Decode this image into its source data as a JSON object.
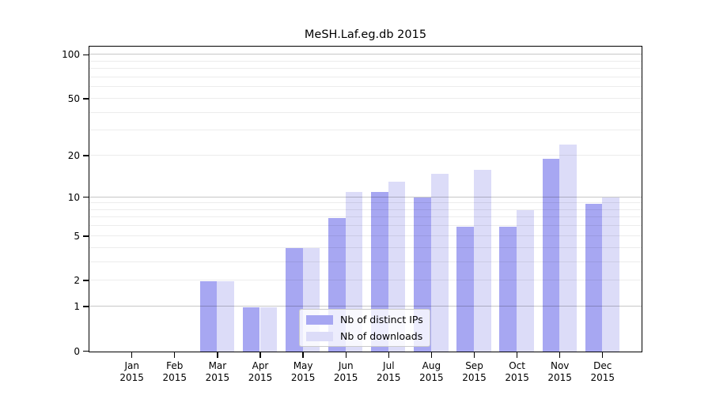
{
  "page": {
    "background": "#ffffff",
    "spine_color": "#000000",
    "text_color": "#000000"
  },
  "chart_data": {
    "type": "bar",
    "title": "MeSH.Laf.eg.db 2015",
    "categories": [
      {
        "month": "Jan",
        "year": "2015"
      },
      {
        "month": "Feb",
        "year": "2015"
      },
      {
        "month": "Mar",
        "year": "2015"
      },
      {
        "month": "Apr",
        "year": "2015"
      },
      {
        "month": "May",
        "year": "2015"
      },
      {
        "month": "Jun",
        "year": "2015"
      },
      {
        "month": "Jul",
        "year": "2015"
      },
      {
        "month": "Aug",
        "year": "2015"
      },
      {
        "month": "Sep",
        "year": "2015"
      },
      {
        "month": "Oct",
        "year": "2015"
      },
      {
        "month": "Nov",
        "year": "2015"
      },
      {
        "month": "Dec",
        "year": "2015"
      }
    ],
    "series": [
      {
        "name": "Nb of distinct IPs",
        "color": "#a7a7f2",
        "values": [
          0,
          0,
          2,
          1,
          4,
          7,
          11,
          10,
          6,
          6,
          19,
          9
        ]
      },
      {
        "name": "Nb of downloads",
        "color": "#dcdcf8",
        "values": [
          0,
          0,
          2,
          1,
          4,
          11,
          13,
          15,
          16,
          8,
          24,
          10
        ]
      }
    ],
    "yscale": "log1p",
    "ylim": [
      0,
      114
    ],
    "yticks": [
      100,
      50,
      20,
      10,
      5,
      2,
      1,
      0
    ],
    "grid": {
      "major": [
        1,
        10,
        100
      ],
      "major_color": "rgba(0,0,0,0.22)",
      "minor": [
        2,
        3,
        4,
        5,
        6,
        7,
        8,
        9,
        20,
        30,
        40,
        50,
        60,
        70,
        80,
        90
      ],
      "minor_color": "rgba(0,0,0,0.075)"
    },
    "legend_position": "inside lower center"
  }
}
